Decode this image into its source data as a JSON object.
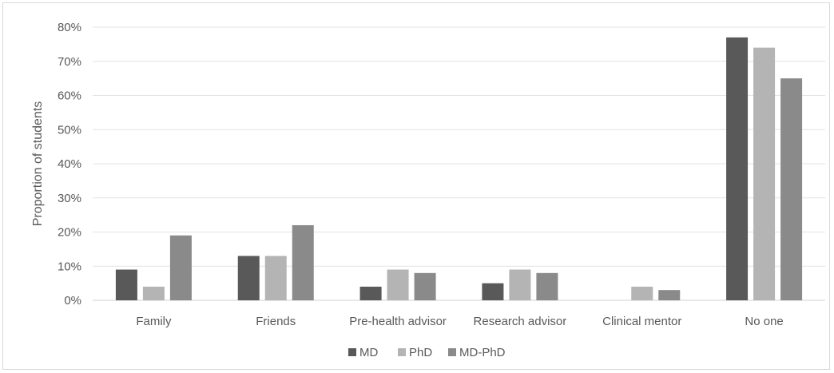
{
  "chart_data": {
    "type": "bar",
    "title": "",
    "xlabel": "",
    "ylabel": "Proportion of students",
    "ylim": [
      0,
      80
    ],
    "yticks": [
      "0%",
      "10%",
      "20%",
      "30%",
      "40%",
      "50%",
      "60%",
      "70%",
      "80%"
    ],
    "categories": [
      "Family",
      "Friends",
      "Pre-health advisor",
      "Research advisor",
      "Clinical mentor",
      "No one"
    ],
    "series": [
      {
        "name": "MD",
        "color": "#595959",
        "values": [
          9,
          13,
          4,
          5,
          0,
          77
        ]
      },
      {
        "name": "PhD",
        "color": "#b4b4b4",
        "values": [
          4,
          13,
          9,
          9,
          4,
          74
        ]
      },
      {
        "name": "MD-PhD",
        "color": "#8a8a8a",
        "values": [
          19,
          22,
          8,
          8,
          3,
          65
        ]
      }
    ],
    "grid": true,
    "legend_position": "bottom"
  }
}
